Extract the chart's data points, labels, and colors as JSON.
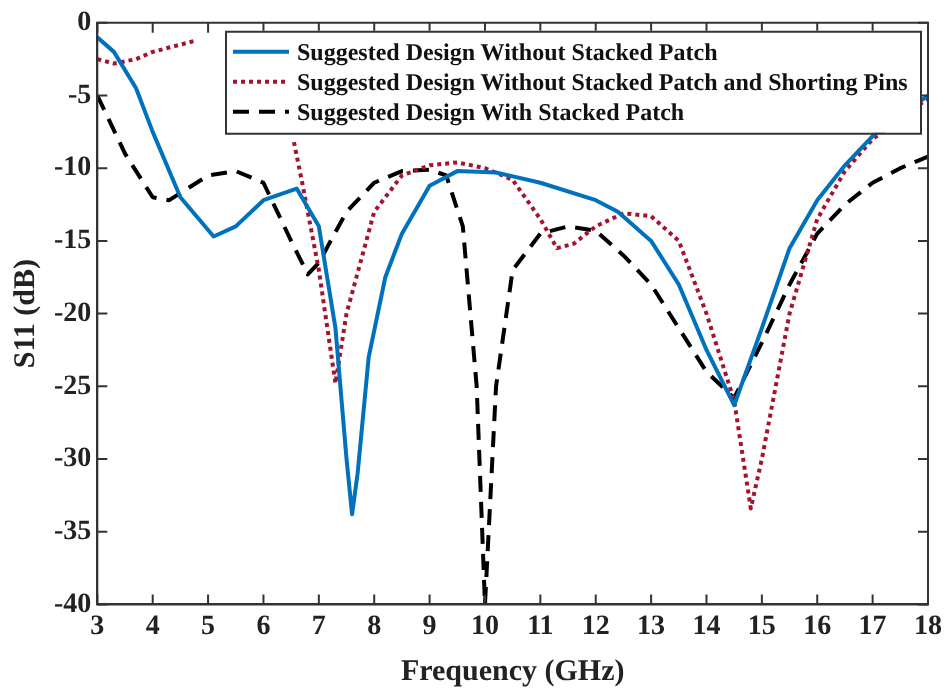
{
  "chart_data": {
    "type": "line",
    "xlabel": "Frequency (GHz)",
    "ylabel": "S11 (dB)",
    "xlim": [
      3,
      18
    ],
    "xticks": [
      3,
      4,
      5,
      6,
      7,
      8,
      9,
      10,
      11,
      12,
      13,
      14,
      15,
      16,
      17,
      18
    ],
    "ylim": [
      -40,
      0
    ],
    "yticks": [
      -40,
      -35,
      -30,
      -25,
      -20,
      -15,
      -10,
      -5,
      0
    ],
    "grid": false,
    "legend": "top right",
    "marker": "none",
    "series": [
      {
        "name": "Suggested Design Without Stacked Patch",
        "color": "#0072bd",
        "line_style": "solid",
        "x": [
          3,
          3.3,
          3.7,
          4,
          4.5,
          5.1,
          5.5,
          6,
          6.6,
          7,
          7.3,
          7.5,
          7.6,
          7.7,
          7.9,
          8.2,
          8.5,
          9,
          9.5,
          10.2,
          11,
          12,
          12.4,
          13,
          13.5,
          14,
          14.5,
          15,
          15.5,
          16,
          16.5,
          17,
          18
        ],
        "values": [
          -1,
          -2,
          -4.5,
          -7.5,
          -12,
          -14.7,
          -14,
          -12.2,
          -11.4,
          -14,
          -21,
          -30,
          -33.8,
          -31,
          -23,
          -17.5,
          -14.5,
          -11.2,
          -10.2,
          -10.3,
          -11,
          -12.2,
          -13,
          -15,
          -18,
          -22.5,
          -26.3,
          -21,
          -15.5,
          -12.2,
          -9.8,
          -7.8,
          -5
        ]
      },
      {
        "name": "Suggested Design Without Stacked Patch and Shorting Pins",
        "color": "#a2142f",
        "line_style": "dotted",
        "x": [
          3,
          3.3,
          3.7,
          4,
          4.5,
          4.8,
          5.5,
          6.55,
          6.7,
          7,
          7.3,
          7.5,
          8,
          8.5,
          9,
          9.5,
          10,
          10.5,
          11,
          11.3,
          11.6,
          12,
          12.5,
          13,
          13.5,
          14,
          14.5,
          14.8,
          15,
          15.5,
          16,
          16.5,
          17,
          18
        ],
        "values": [
          -2.5,
          -2.8,
          -2.5,
          -2,
          -1.5,
          -1.2,
          null,
          -8.2,
          -11,
          -17,
          -24.8,
          -20,
          -13,
          -10.5,
          -9.8,
          -9.6,
          -10,
          -10.8,
          -13.5,
          -15.5,
          -15.2,
          -14,
          -13.1,
          -13.3,
          -15,
          -20,
          -26,
          -33.4,
          -30,
          -20,
          -13.5,
          -10.2,
          -8,
          -5.2
        ]
      },
      {
        "name": "Suggested Design With Stacked Patch",
        "color": "#000000",
        "line_style": "dashed",
        "x": [
          3,
          3.5,
          4,
          4.3,
          5,
          5.5,
          6,
          6.5,
          6.8,
          7,
          7.5,
          8,
          8.5,
          9,
          9.3,
          9.6,
          9.85,
          10,
          10.2,
          10.5,
          11,
          11.5,
          12,
          12.5,
          13,
          13.5,
          14,
          14.5,
          15,
          15.5,
          16,
          16.5,
          17,
          17.5,
          18
        ],
        "values": [
          -5,
          -9,
          -12,
          -12.2,
          -10.5,
          -10.2,
          -11,
          -15,
          -17.3,
          -16.5,
          -13,
          -11,
          -10.2,
          -10.1,
          -10.5,
          -14,
          -25,
          -40,
          -25,
          -17,
          -14.5,
          -14,
          -14.3,
          -16,
          -18,
          -21,
          -24,
          -25.8,
          -22,
          -18,
          -14.5,
          -12.5,
          -11,
          -10,
          -9.2
        ]
      }
    ]
  }
}
